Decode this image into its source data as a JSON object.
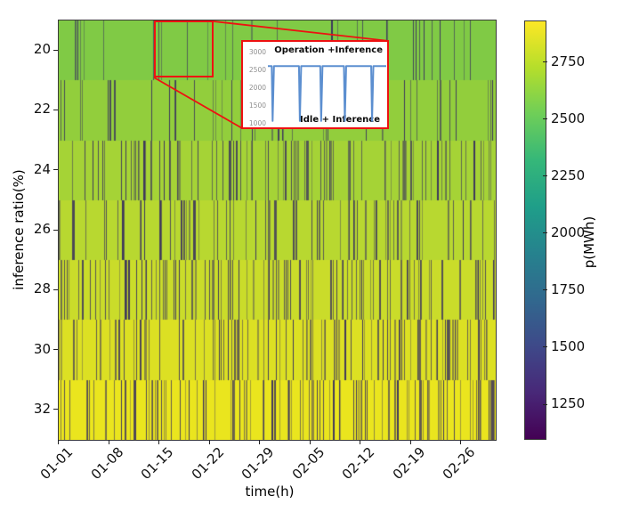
{
  "figure": {
    "xlabel": "time(h)",
    "ylabel": "inference ratio(%)",
    "background": "#ffffff"
  },
  "chart_data": {
    "type": "heatmap",
    "title": "",
    "xlabel": "time(h)",
    "ylabel": "inference ratio(%)",
    "x_tick_labels": [
      "01-01",
      "01-08",
      "01-15",
      "01-22",
      "01-29",
      "02-05",
      "02-12",
      "02-19",
      "02-26"
    ],
    "y_tick_labels": [
      "20",
      "22",
      "24",
      "26",
      "28",
      "30",
      "32"
    ],
    "y_axis_range": [
      19,
      33
    ],
    "grid": false,
    "rows": [
      {
        "ratio": 20,
        "base_p": 2600,
        "color": "#80ca45",
        "stripe_density": 0.055
      },
      {
        "ratio": 22,
        "base_p": 2640,
        "color": "#92ce3c",
        "stripe_density": 0.11
      },
      {
        "ratio": 24,
        "base_p": 2680,
        "color": "#a5d336",
        "stripe_density": 0.15
      },
      {
        "ratio": 26,
        "base_p": 2720,
        "color": "#b8d830",
        "stripe_density": 0.17
      },
      {
        "ratio": 28,
        "base_p": 2760,
        "color": "#cadc2a",
        "stripe_density": 0.19
      },
      {
        "ratio": 30,
        "base_p": 2800,
        "color": "#dce023",
        "stripe_density": 0.21
      },
      {
        "ratio": 32,
        "base_p": 2850,
        "color": "#eae51e",
        "stripe_density": 0.23
      }
    ],
    "dip_p": 1100,
    "stripe_dark_color": "#38305e",
    "random_seed": 42,
    "highlight_color": "#ee1111",
    "colorbar": {
      "label": "p(MWh)",
      "vmin": 1100,
      "vmax": 2930,
      "ticks": [
        "1250",
        "1500",
        "1750",
        "2000",
        "2250",
        "2500",
        "2750"
      ],
      "colormap": "viridis",
      "stops": [
        "#440154",
        "#482878",
        "#3e4989",
        "#31688e",
        "#26828e",
        "#1f9e89",
        "#35b779",
        "#6ece58",
        "#b5de2b",
        "#fde725"
      ]
    },
    "inset": {
      "title_top": "Operation +Inference",
      "label_bottom": "Idle + Inference",
      "y_ticks": [
        "3000",
        "2500",
        "2000",
        "1500",
        "1000"
      ],
      "y_range": [
        1000,
        3000
      ],
      "baseline_value": 2620,
      "dip_value": 1080,
      "dip_positions": [
        0.04,
        0.27,
        0.45,
        0.65,
        0.88
      ],
      "line_color": "#5c8fd0"
    }
  }
}
